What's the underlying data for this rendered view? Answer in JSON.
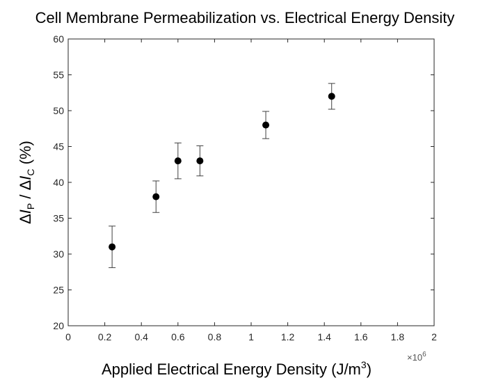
{
  "chart_data": {
    "type": "scatter",
    "title": "Cell Membrane Permeabilization vs. Electrical Energy Density",
    "xlabel": "Applied Electrical Energy Density (J/m",
    "xlabel_superscript": "3",
    "xlabel_close": ")",
    "ylabel": {
      "delta1": "Δ",
      "var1": "I",
      "sub1": "P",
      "sep": " / ",
      "delta2": "Δ",
      "var2": "I",
      "sub2": "C",
      "unit": " (%)"
    },
    "x_multiplier": {
      "base": "×10",
      "exponent": "6"
    },
    "xlim": [
      0,
      2
    ],
    "ylim": [
      20,
      60
    ],
    "xticks": [
      "0",
      "0.2",
      "0.4",
      "0.6",
      "0.8",
      "1",
      "1.2",
      "1.4",
      "1.6",
      "1.8",
      "2"
    ],
    "yticks": [
      "20",
      "25",
      "30",
      "35",
      "40",
      "45",
      "50",
      "55",
      "60"
    ],
    "grid": false,
    "points": [
      {
        "x": 0.24,
        "y": 31,
        "err_low": 28.1,
        "err_high": 33.9
      },
      {
        "x": 0.48,
        "y": 38,
        "err_low": 35.8,
        "err_high": 40.2
      },
      {
        "x": 0.6,
        "y": 43,
        "err_low": 40.5,
        "err_high": 45.5
      },
      {
        "x": 0.72,
        "y": 43,
        "err_low": 40.9,
        "err_high": 45.1
      },
      {
        "x": 1.08,
        "y": 48,
        "err_low": 46.1,
        "err_high": 49.9
      },
      {
        "x": 1.44,
        "y": 52,
        "err_low": 50.2,
        "err_high": 53.8
      }
    ],
    "marker_color": "#000000",
    "errorbar_color": "#404040"
  }
}
